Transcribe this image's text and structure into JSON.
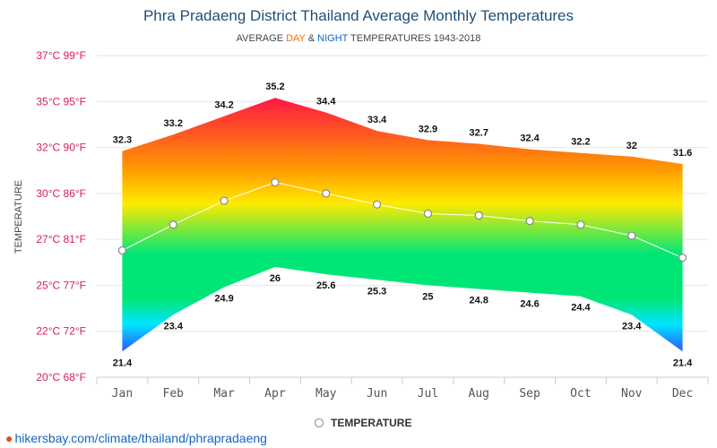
{
  "chart_data": {
    "type": "area",
    "title": "Phra Pradaeng District Thailand Average Monthly Temperatures",
    "subtitle": {
      "prefix": "AVERAGE ",
      "day": "DAY",
      "amp": " & ",
      "night": "NIGHT",
      "suffix": " TEMPERATURES 1943-2018"
    },
    "ylabel": "TEMPERATURE",
    "y_ticks": [
      {
        "value": 20,
        "label": "20°C 68°F"
      },
      {
        "value": 22.5,
        "label": "22°C 72°F"
      },
      {
        "value": 25,
        "label": "25°C 77°F"
      },
      {
        "value": 27.5,
        "label": "27°C 81°F"
      },
      {
        "value": 30,
        "label": "30°C 86°F"
      },
      {
        "value": 32.5,
        "label": "32°C 90°F"
      },
      {
        "value": 35,
        "label": "35°C 95°F"
      },
      {
        "value": 37.5,
        "label": "37°C 99°F"
      }
    ],
    "ylim": [
      20,
      37.5
    ],
    "grid": true,
    "categories": [
      "Jan",
      "Feb",
      "Mar",
      "Apr",
      "May",
      "Jun",
      "Jul",
      "Aug",
      "Sep",
      "Oct",
      "Nov",
      "Dec"
    ],
    "day": [
      32.3,
      33.2,
      34.2,
      35.2,
      34.4,
      33.4,
      32.9,
      32.7,
      32.4,
      32.2,
      32,
      31.6
    ],
    "night": [
      21.4,
      23.4,
      24.9,
      26,
      25.6,
      25.3,
      25,
      24.8,
      24.6,
      24.4,
      23.4,
      21.4
    ],
    "series": [
      {
        "name": "TEMPERATURE",
        "values": [
          26.9,
          28.3,
          29.6,
          30.6,
          30.0,
          29.4,
          28.9,
          28.8,
          28.5,
          28.3,
          27.7,
          26.5
        ]
      }
    ],
    "legend_position": "bottom-center",
    "colors": {
      "hot": "#ff1744",
      "mid": "#ffea00",
      "green": "#00e676",
      "cold": "#2962ff",
      "day": "#ff6d00",
      "night": "#1565c0"
    }
  },
  "footer": {
    "source": "hikersbay.com/climate/thailand/phrapradaeng"
  }
}
